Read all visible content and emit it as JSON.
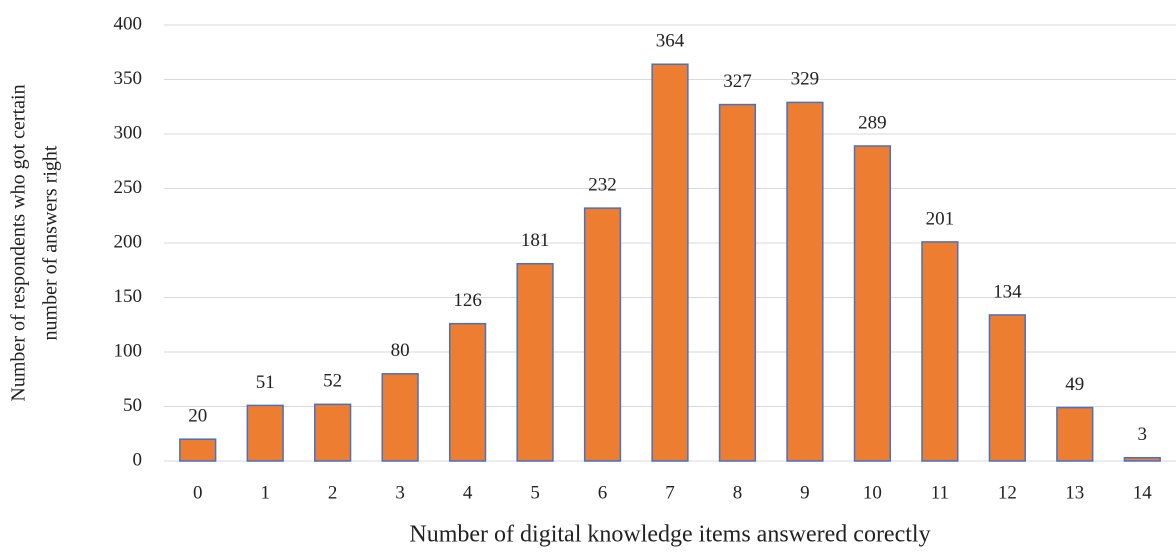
{
  "chart_data": {
    "type": "bar",
    "x_label": "Number of digital knowledge items answered corectly",
    "y_label": [
      "Number of respondents who got  certain",
      "number of answers right"
    ],
    "categories": [
      "0",
      "1",
      "2",
      "3",
      "4",
      "5",
      "6",
      "7",
      "8",
      "9",
      "10",
      "11",
      "12",
      "13",
      "14"
    ],
    "values": [
      20,
      51,
      52,
      80,
      126,
      181,
      232,
      364,
      327,
      329,
      289,
      201,
      134,
      49,
      3
    ],
    "color": "#ED7D31",
    "edge_color": "#4472C4",
    "ylim": [
      0,
      400
    ],
    "yticks": [
      0,
      50,
      100,
      150,
      200,
      250,
      300,
      350,
      400
    ],
    "grid": true,
    "data_labels": true
  }
}
